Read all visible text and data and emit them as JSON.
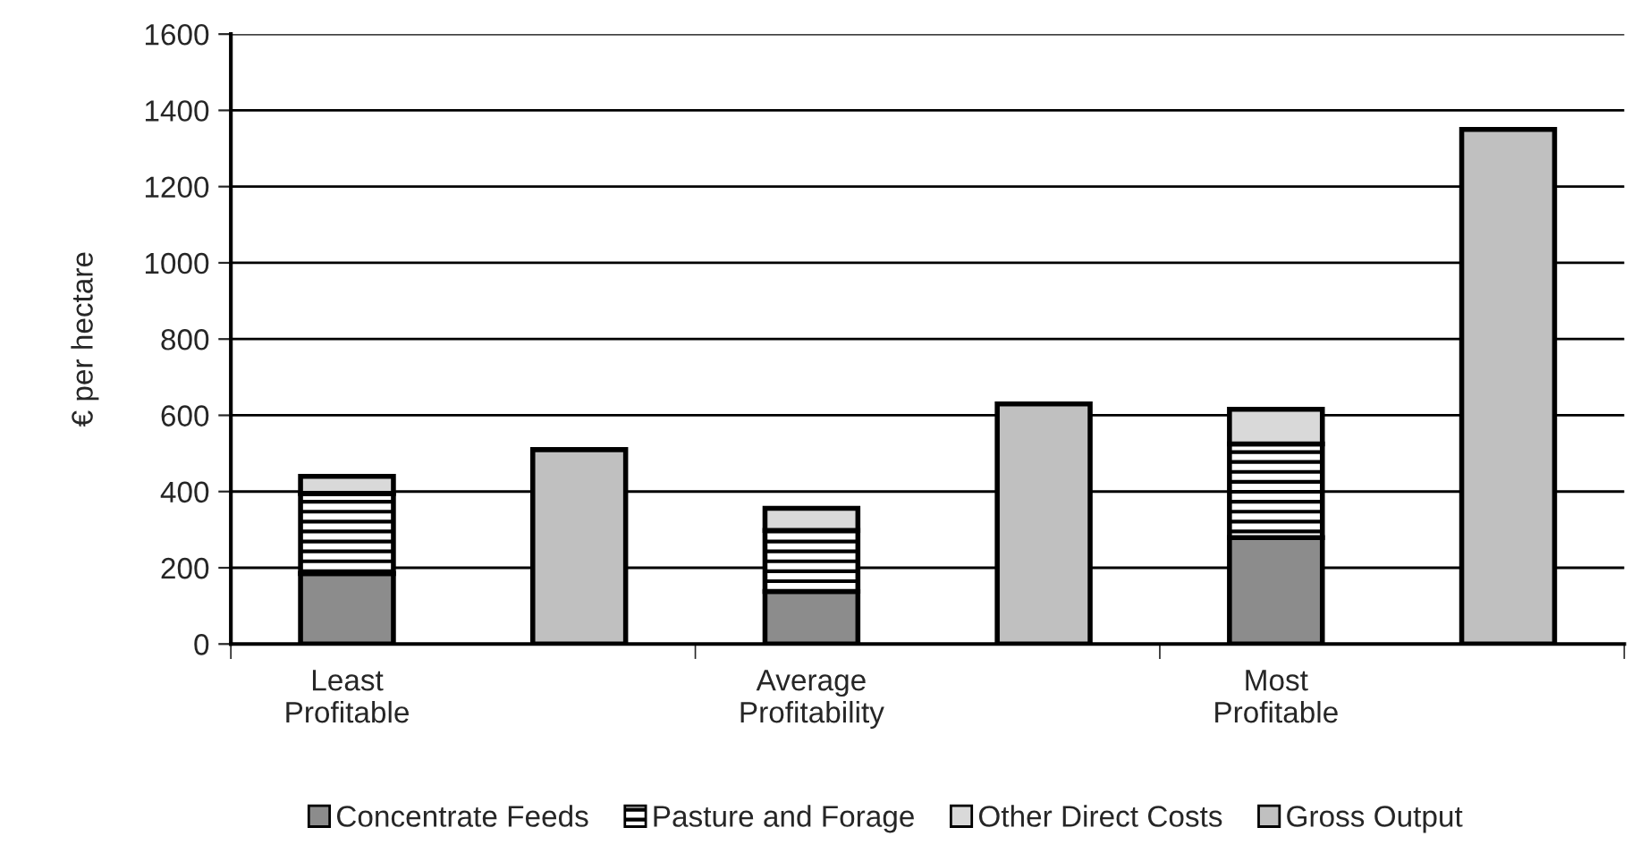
{
  "chart_data": {
    "type": "bar",
    "stacked": true,
    "ylabel": "€ per hectare",
    "categories": [
      "Least\nProfitable",
      null,
      "Average\nProfitability",
      null,
      "Most\nProfitable",
      null
    ],
    "series": [
      {
        "name": "Concentrate Feeds",
        "color": "#8c8c8c",
        "values": [
          185,
          null,
          138,
          null,
          279,
          null
        ]
      },
      {
        "name": "Pasture and Forage",
        "color": "#000000",
        "values": [
          210,
          null,
          160,
          null,
          246,
          null
        ]
      },
      {
        "name": "Other Direct Costs",
        "color": "#d9d9d9",
        "values": [
          45,
          null,
          58,
          null,
          91,
          null
        ]
      },
      {
        "name": "Gross Output",
        "color": "#c0c0c0",
        "values": [
          null,
          510,
          null,
          630,
          null,
          1350
        ]
      }
    ],
    "ylim": [
      0,
      1600
    ],
    "yticks": [
      0,
      200,
      400,
      600,
      800,
      1000,
      1200,
      1400,
      1600
    ],
    "grid": "y",
    "legend": "bottom"
  }
}
